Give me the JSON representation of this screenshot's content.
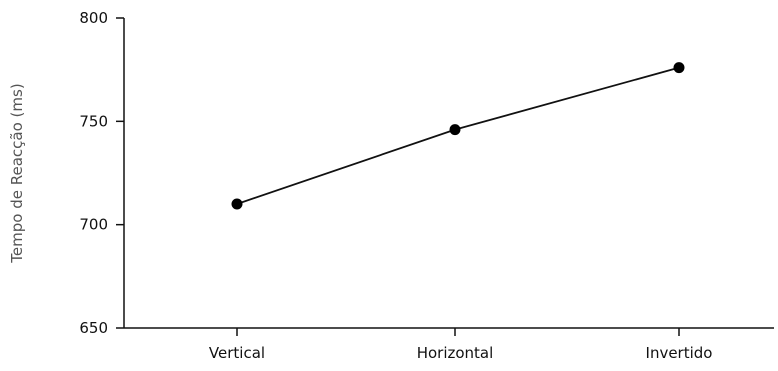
{
  "chart_data": {
    "type": "line",
    "categories": [
      "Vertical",
      "Horizontal",
      "Invertido"
    ],
    "series": [
      {
        "values": [
          710,
          746,
          776
        ]
      }
    ],
    "xlabel": "",
    "ylabel": "Tempo de Reacção (ms)",
    "ylim": [
      650,
      800
    ],
    "yticks": [
      650,
      700,
      750,
      800
    ],
    "grid": false,
    "legend": "none",
    "colors": {
      "line": "#111111",
      "marker": "#000000",
      "axis": "#111111"
    }
  }
}
